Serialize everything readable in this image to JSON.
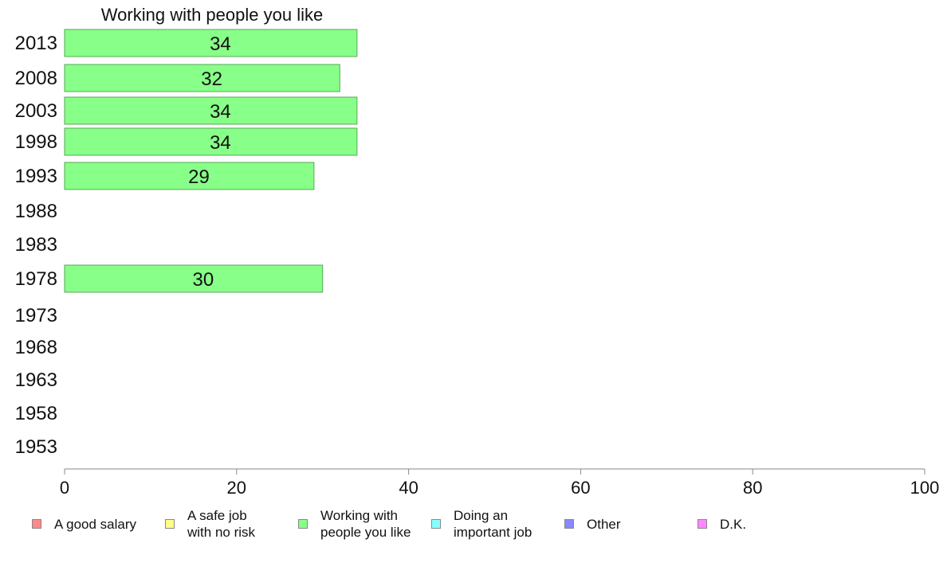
{
  "chart_data": {
    "type": "bar",
    "orientation": "horizontal",
    "title": "Working with people you like",
    "categories": [
      "2013",
      "2008",
      "2003",
      "1998",
      "1993",
      "1988",
      "1983",
      "1978",
      "1973",
      "1968",
      "1963",
      "1958",
      "1953"
    ],
    "values": [
      34,
      32,
      34,
      34,
      29,
      null,
      null,
      30,
      null,
      null,
      null,
      null,
      null
    ],
    "bar_color": "#88ff88",
    "xlim": [
      0,
      100
    ],
    "x_ticks": [
      "0",
      "20",
      "40",
      "60",
      "80",
      "100"
    ],
    "legend_position": "bottom",
    "legend": [
      {
        "label": "A good salary",
        "color": "#ff8888"
      },
      {
        "label": "A safe job\nwith no risk",
        "color": "#ffff88"
      },
      {
        "label": "Working with\npeople you like",
        "color": "#88ff88"
      },
      {
        "label": "Doing an\nimportant job",
        "color": "#88ffff"
      },
      {
        "label": "Other",
        "color": "#8888ff"
      },
      {
        "label": "D.K.",
        "color": "#ff88ff"
      }
    ]
  }
}
